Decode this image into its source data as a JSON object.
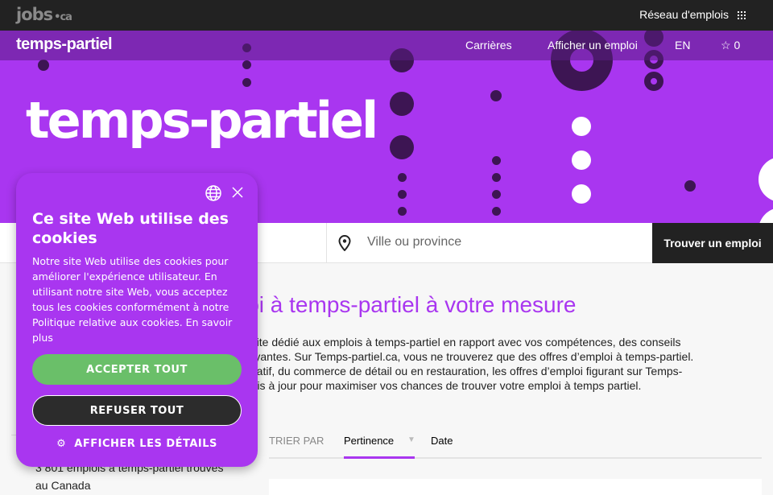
{
  "topbar": {
    "logo": "jobs",
    "logo_suffix": "•ca",
    "network": "Réseau d'emplois"
  },
  "nav": {
    "brand": "temps-partiel",
    "links": [
      "Carrières",
      "Afficher un emploi",
      "EN"
    ],
    "favorites_count": "0"
  },
  "hero": {
    "title": "temps-partiel"
  },
  "search": {
    "location_placeholder": "Ville ou province",
    "button": "Trouver un emploi"
  },
  "intro": {
    "title": "loi à temps-partiel à votre mesure",
    "lines": [
      "n site dédié aux emplois à temps-partiel en rapport avec vos compétences, des conseils",
      "trayantes. Sur Temps-partiel.ca, vous ne trouverez que des offres d’emploi à temps-partiel.",
      "istratif, du commerce de détail ou en restauration, les offres d’emploi figurant sur Temps-",
      "t mis à jour pour maximiser vos chances de trouver votre emploi à temps partiel."
    ]
  },
  "sort": {
    "label": "TRIER PAR",
    "options": [
      "Pertinence",
      "Date"
    ],
    "selected": "Pertinence"
  },
  "results": {
    "count_text": "3 801 emplois à temps-partiel trouvés au Canada"
  },
  "cookie": {
    "title": "Ce site Web utilise des cookies",
    "body": "Notre site Web utilise des cookies pour améliorer l'expérience utilisateur. En utilisant notre site Web, vous acceptez tous les cookies conformément à notre Politique relative aux cookies. En savoir plus",
    "accept": "ACCEPTER TOUT",
    "refuse": "REFUSER TOUT",
    "details": "AFFICHER LES DÉTAILS"
  },
  "colors": {
    "brand": "#a936f0",
    "dark": "#222222",
    "accept": "#6abf69"
  }
}
